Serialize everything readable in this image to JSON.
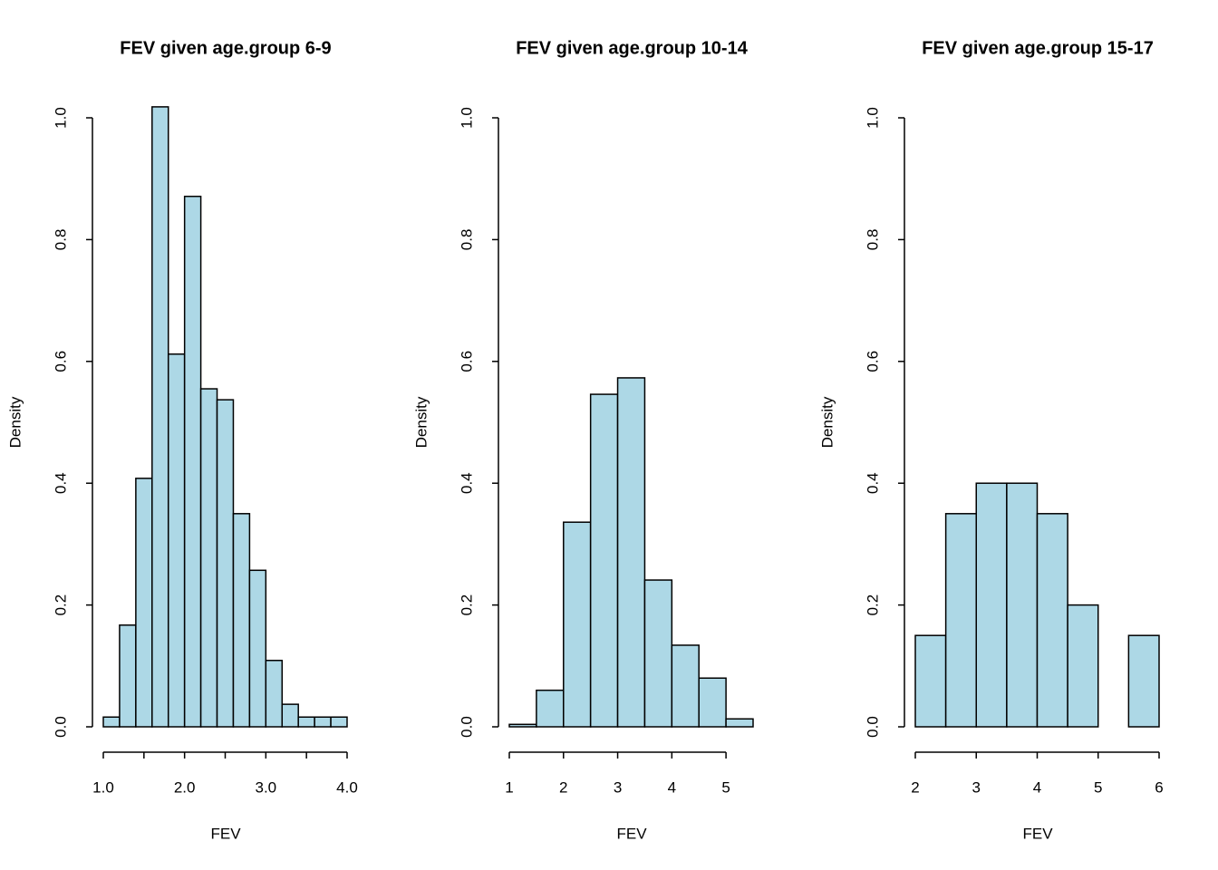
{
  "chart_data": [
    {
      "type": "histogram",
      "title": "FEV given age.group 6-9",
      "xlabel": "FEV",
      "ylabel": "Density",
      "color": "#add8e6",
      "bins": [
        1.0,
        1.2,
        1.4,
        1.6,
        1.8,
        2.0,
        2.2,
        2.4,
        2.6,
        2.8,
        3.0,
        3.2,
        3.4,
        3.6,
        3.8,
        4.0
      ],
      "values": [
        0.016,
        0.167,
        0.408,
        1.018,
        0.612,
        0.871,
        0.555,
        0.537,
        0.35,
        0.257,
        0.109,
        0.037,
        0.016,
        0.016,
        0.016
      ],
      "xlim": [
        1,
        4
      ],
      "xticks": [
        {
          "value": 1,
          "label": "1.0"
        },
        {
          "value": 1.5,
          "label": null
        },
        {
          "value": 2,
          "label": "2.0"
        },
        {
          "value": 2.5,
          "label": null
        },
        {
          "value": 3,
          "label": "3.0"
        },
        {
          "value": 3.5,
          "label": null
        },
        {
          "value": 4,
          "label": "4.0"
        }
      ],
      "ylim": [
        0,
        1
      ],
      "yticks": [
        {
          "value": 0,
          "label": "0.0"
        },
        0.2,
        0.4,
        0.6,
        0.8,
        {
          "value": 1,
          "label": "1.0"
        }
      ]
    },
    {
      "type": "histogram",
      "title": "FEV given age.group 10-14",
      "xlabel": "FEV",
      "ylabel": "Density",
      "color": "#add8e6",
      "bins": [
        1.0,
        1.5,
        2.0,
        2.5,
        3.0,
        3.5,
        4.0,
        4.5,
        5.0,
        5.5
      ],
      "values": [
        0.004,
        0.06,
        0.336,
        0.546,
        0.573,
        0.241,
        0.134,
        0.08,
        0.013
      ],
      "xlim": [
        1,
        5.5
      ],
      "xticks": [
        1,
        2,
        3,
        4,
        5
      ],
      "ylim": [
        0,
        1
      ],
      "yticks": [
        {
          "value": 0,
          "label": "0.0"
        },
        0.2,
        0.4,
        0.6,
        0.8,
        {
          "value": 1,
          "label": "1.0"
        }
      ]
    },
    {
      "type": "histogram",
      "title": "FEV given age.group 15-17",
      "xlabel": "FEV",
      "ylabel": "Density",
      "color": "#add8e6",
      "bins": [
        2.0,
        2.5,
        3.0,
        3.5,
        4.0,
        4.5,
        5.0,
        5.5,
        6.0
      ],
      "values": [
        0.15,
        0.35,
        0.4,
        0.4,
        0.35,
        0.2,
        0,
        0.15
      ],
      "xlim": [
        2,
        6
      ],
      "xticks": [
        2,
        3,
        4,
        5,
        6
      ],
      "ylim": [
        0,
        1
      ],
      "yticks": [
        {
          "value": 0,
          "label": "0.0"
        },
        0.2,
        0.4,
        0.6,
        0.8,
        {
          "value": 1,
          "label": "1.0"
        }
      ]
    }
  ]
}
